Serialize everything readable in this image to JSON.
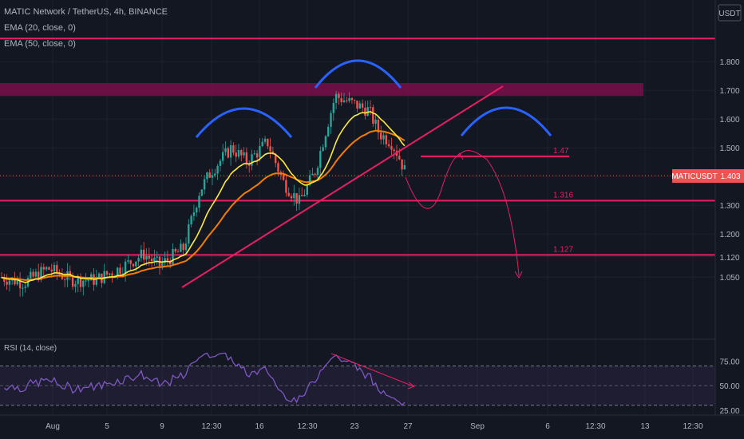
{
  "header": {
    "symbol_line": "MATIC Network / TetherUS, 4h, BINANCE",
    "ema20": "EMA (20, close, 0)",
    "ema50": "EMA (50, close, 0)",
    "rsi": "RSI (14, close)",
    "currency": "USDT"
  },
  "colors": {
    "background": "#131722",
    "level_line": "#e91e63",
    "resistance_zone": "#880e4f",
    "pattern_arc": "#2962ff",
    "ema20": "#ffeb3b",
    "ema50": "#f57c00",
    "up_candle": "#26a69a",
    "down_candle": "#ef5350",
    "rsi_line": "#7e57c2",
    "rsi_band": "#7e57c2"
  },
  "chart_data": {
    "type": "candlestick",
    "price_axis": {
      "ticks": [
        "1.800",
        "1.700",
        "1.600",
        "1.500",
        "1.400",
        "1.300",
        "1.200",
        "1.120",
        "1.050"
      ],
      "range": [
        1.0,
        1.9
      ]
    },
    "time_axis": {
      "ticks": [
        "Aug",
        "5",
        "9",
        "12:30",
        "16",
        "12:30",
        "23",
        "27",
        "Sep",
        "6",
        "12:30",
        "13",
        "12:30"
      ]
    },
    "last_price": {
      "symbol": "MATICUSDT",
      "value": "1.403"
    },
    "horizontal_levels": [
      {
        "label": "",
        "value": 1.88
      },
      {
        "label": "1.47",
        "value": 1.47
      },
      {
        "label": "1.316",
        "value": 1.316
      },
      {
        "label": "1.127",
        "value": 1.127
      }
    ],
    "resistance_zone": [
      1.68,
      1.725
    ],
    "series": [
      {
        "name": "EMA (20, close, 0)",
        "y_start": 1.03,
        "y_end": 1.5
      },
      {
        "name": "EMA (50, close, 0)",
        "y_start": 1.02,
        "y_end": 1.48
      }
    ],
    "annotations": [
      "left shoulder",
      "head",
      "right shoulder (projected)",
      "rising trendline",
      "projected path to 1.127"
    ],
    "rsi": {
      "label": "RSI (14, close)",
      "ticks": [
        "75.00",
        "50.00",
        "25.00"
      ],
      "range": [
        20,
        85
      ],
      "band": [
        30,
        70
      ]
    }
  }
}
